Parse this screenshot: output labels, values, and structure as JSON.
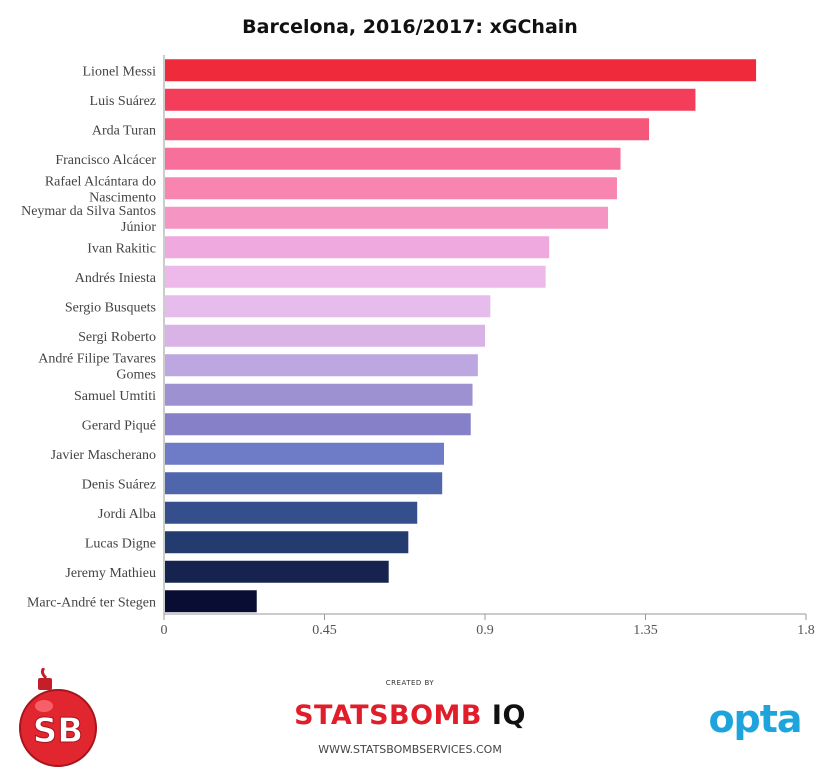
{
  "chart_data": {
    "type": "bar",
    "orientation": "horizontal",
    "title": "Barcelona, 2016/2017: xGChain",
    "categories": [
      "Lionel Messi",
      "Luis Suárez",
      "Arda Turan",
      "Francisco Alcácer",
      "Rafael Alcántara do Nascimento",
      "Neymar da Silva Santos Júnior",
      "Ivan Rakitic",
      "Andrés Iniesta",
      "Sergio Busquets",
      "Sergi Roberto",
      "André Filipe Tavares Gomes",
      "Samuel Umtiti",
      "Gerard Piqué",
      "Javier Mascherano",
      "Denis Suárez",
      "Jordi Alba",
      "Lucas Digne",
      "Jeremy Mathieu",
      "Marc-André ter Stegen"
    ],
    "label_lines": [
      [
        "Lionel Messi"
      ],
      [
        "Luis Suárez"
      ],
      [
        "Arda Turan"
      ],
      [
        "Francisco Alcácer"
      ],
      [
        "Rafael Alcántara do",
        "Nascimento"
      ],
      [
        "Neymar da Silva Santos",
        "Júnior"
      ],
      [
        "Ivan Rakitic"
      ],
      [
        "Andrés Iniesta"
      ],
      [
        "Sergio Busquets"
      ],
      [
        "Sergi Roberto"
      ],
      [
        "André Filipe Tavares",
        "Gomes"
      ],
      [
        "Samuel Umtiti"
      ],
      [
        "Gerard Piqué"
      ],
      [
        "Javier Mascherano"
      ],
      [
        "Denis Suárez"
      ],
      [
        "Jordi Alba"
      ],
      [
        "Lucas Digne"
      ],
      [
        "Jeremy Mathieu"
      ],
      [
        "Marc-André ter Stegen"
      ]
    ],
    "values": [
      1.66,
      1.49,
      1.36,
      1.28,
      1.27,
      1.245,
      1.08,
      1.07,
      0.915,
      0.9,
      0.88,
      0.865,
      0.86,
      0.785,
      0.78,
      0.71,
      0.685,
      0.63,
      0.26
    ],
    "colors": [
      "#ee2a3b",
      "#f33d5a",
      "#f5577a",
      "#f7709b",
      "#f785b0",
      "#f595c4",
      "#f0a9de",
      "#ecb9ea",
      "#e5bcec",
      "#d9b2e6",
      "#bca7e0",
      "#9e91d2",
      "#8680c8",
      "#6e7bc6",
      "#4f66ad",
      "#354f8d",
      "#233b6e",
      "#16234f",
      "#0a0d33"
    ],
    "xlim": [
      0,
      1.8
    ],
    "xticks": [
      "0",
      "0.45",
      "0.9",
      "1.35",
      "1.8"
    ],
    "xtick_values": [
      0,
      0.45,
      0.9,
      1.35,
      1.8
    ],
    "grid": false,
    "legend": "none"
  },
  "footer": {
    "created_by": "CREATED BY",
    "brand_main": "STATSBOMB",
    "brand_suffix": "IQ",
    "url": "WWW.STATSBOMBSERVICES.COM",
    "opta": "opta",
    "logo_text": "SB"
  }
}
